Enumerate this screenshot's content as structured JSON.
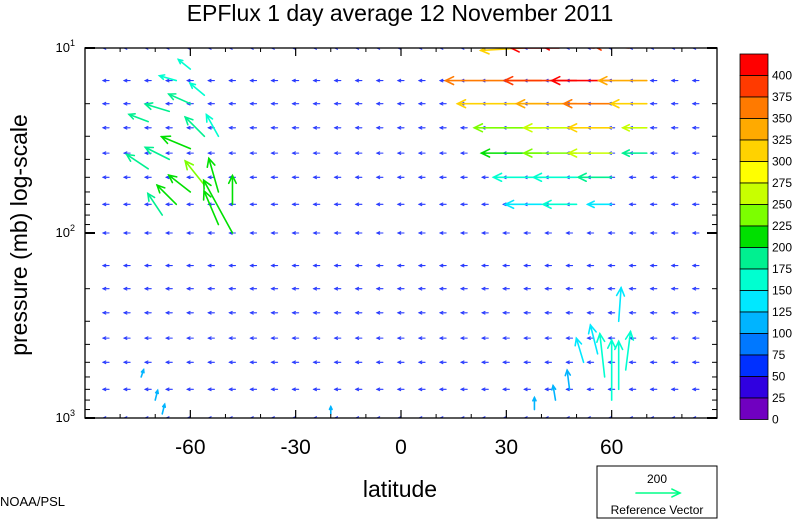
{
  "chart_data": {
    "type": "vector",
    "title": "EPFlux  1 day average  12 November  2011",
    "xlabel": "latitude",
    "ylabel": "pressure (mb)  log-scale",
    "x_ticks": [
      -60,
      -30,
      0,
      30,
      60
    ],
    "x_tick_labels": [
      "-60",
      "-30",
      "0",
      "30",
      "60"
    ],
    "xlim": [
      -90,
      90
    ],
    "y_scale": "log",
    "ylim": [
      1000,
      10
    ],
    "y_ticks": [
      {
        "value": 10,
        "base": "10",
        "exp": "1"
      },
      {
        "value": 100,
        "base": "10",
        "exp": "2"
      },
      {
        "value": 1000,
        "base": "10",
        "exp": "3"
      }
    ],
    "colorbar": {
      "labels": [
        "400",
        "375",
        "350",
        "325",
        "300",
        "275",
        "250",
        "225",
        "200",
        "175",
        "150",
        "125",
        "100",
        "75",
        "50",
        "25",
        "0"
      ],
      "colors": [
        "#ff0000",
        "#ff3a00",
        "#ff7a00",
        "#ffaa00",
        "#ffd200",
        "#ffff00",
        "#c8ff00",
        "#7cff00",
        "#00e000",
        "#00f090",
        "#00ffd0",
        "#00e8ff",
        "#00b4ff",
        "#0078ff",
        "#0030ff",
        "#3000e0",
        "#7000c0"
      ]
    },
    "reference_vector": {
      "value": "200",
      "label": "Reference Vector",
      "color": "#00ff88"
    },
    "source_label": "NOAA/PSL",
    "vectors": [
      {
        "lat": -68,
        "p": 80,
        "u": -6,
        "v": -9,
        "c": 180
      },
      {
        "lat": -64,
        "p": 70,
        "u": -8,
        "v": -8,
        "c": 200
      },
      {
        "lat": -60,
        "p": 60,
        "u": -9,
        "v": -7,
        "c": 210
      },
      {
        "lat": -56,
        "p": 55,
        "u": -8,
        "v": -10,
        "c": 215
      },
      {
        "lat": -52,
        "p": 60,
        "u": -4,
        "v": -14,
        "c": 205
      },
      {
        "lat": -48,
        "p": 70,
        "u": 0,
        "v": -12,
        "c": 195
      },
      {
        "lat": -72,
        "p": 45,
        "u": -9,
        "v": -6,
        "c": 170
      },
      {
        "lat": -66,
        "p": 40,
        "u": -10,
        "v": -5,
        "c": 185
      },
      {
        "lat": -60,
        "p": 35,
        "u": -12,
        "v": -5,
        "c": 195
      },
      {
        "lat": -56,
        "p": 30,
        "u": -8,
        "v": -8,
        "c": 175
      },
      {
        "lat": -52,
        "p": 30,
        "u": -5,
        "v": -9,
        "c": 160
      },
      {
        "lat": -72,
        "p": 25,
        "u": -8,
        "v": -3,
        "c": 165
      },
      {
        "lat": -66,
        "p": 22,
        "u": -10,
        "v": -3,
        "c": 175
      },
      {
        "lat": -60,
        "p": 20,
        "u": -9,
        "v": -4,
        "c": 170
      },
      {
        "lat": -56,
        "p": 18,
        "u": -6,
        "v": -5,
        "c": 150
      },
      {
        "lat": -64,
        "p": 15,
        "u": -7,
        "v": -2,
        "c": 150
      },
      {
        "lat": -60,
        "p": 13,
        "u": -5,
        "v": -4,
        "c": 140
      },
      {
        "lat": -48,
        "p": 100,
        "u": -12,
        "v": -22,
        "c": 200
      },
      {
        "lat": -52,
        "p": 90,
        "u": -6,
        "v": -14,
        "c": 190
      },
      {
        "lat": 40,
        "p": 15,
        "u": -40,
        "v": 0,
        "c": 340
      },
      {
        "lat": 50,
        "p": 15,
        "u": -30,
        "v": 0,
        "c": 380
      },
      {
        "lat": 60,
        "p": 15,
        "u": -25,
        "v": 0,
        "c": 400
      },
      {
        "lat": 70,
        "p": 15,
        "u": -20,
        "v": 0,
        "c": 330
      },
      {
        "lat": 40,
        "p": 20,
        "u": -35,
        "v": 0,
        "c": 290
      },
      {
        "lat": 50,
        "p": 20,
        "u": -25,
        "v": 0,
        "c": 330
      },
      {
        "lat": 60,
        "p": 20,
        "u": -20,
        "v": 0,
        "c": 360
      },
      {
        "lat": 70,
        "p": 20,
        "u": -15,
        "v": 0,
        "c": 300
      },
      {
        "lat": 40,
        "p": 27,
        "u": -28,
        "v": 0,
        "c": 230
      },
      {
        "lat": 50,
        "p": 27,
        "u": -22,
        "v": 0,
        "c": 260
      },
      {
        "lat": 60,
        "p": 27,
        "u": -18,
        "v": 0,
        "c": 290
      },
      {
        "lat": 70,
        "p": 27,
        "u": -10,
        "v": 0,
        "c": 240
      },
      {
        "lat": 40,
        "p": 37,
        "u": -25,
        "v": 0,
        "c": 200
      },
      {
        "lat": 50,
        "p": 37,
        "u": -22,
        "v": 0,
        "c": 230
      },
      {
        "lat": 60,
        "p": 37,
        "u": -18,
        "v": 0,
        "c": 250
      },
      {
        "lat": 70,
        "p": 37,
        "u": -10,
        "v": 0,
        "c": 180
      },
      {
        "lat": 40,
        "p": 50,
        "u": -20,
        "v": 0,
        "c": 150
      },
      {
        "lat": 50,
        "p": 50,
        "u": -18,
        "v": 0,
        "c": 160
      },
      {
        "lat": 60,
        "p": 50,
        "u": -14,
        "v": 0,
        "c": 170
      },
      {
        "lat": 40,
        "p": 70,
        "u": -15,
        "v": 0,
        "c": 130
      },
      {
        "lat": 50,
        "p": 70,
        "u": -14,
        "v": 0,
        "c": 140
      },
      {
        "lat": 60,
        "p": 70,
        "u": -10,
        "v": 0,
        "c": 120
      },
      {
        "lat": 35,
        "p": 10,
        "u": -18,
        "v": 1,
        "c": 300
      },
      {
        "lat": 45,
        "p": 10,
        "u": -20,
        "v": 0,
        "c": 390
      },
      {
        "lat": 55,
        "p": 10,
        "u": -22,
        "v": -1,
        "c": 400
      },
      {
        "lat": 65,
        "p": 10,
        "u": -15,
        "v": -1,
        "c": 380
      },
      {
        "lat": 60,
        "p": 800,
        "u": 0,
        "v": -25,
        "c": 150
      },
      {
        "lat": 62,
        "p": 700,
        "u": 0,
        "v": -20,
        "c": 150
      },
      {
        "lat": 58,
        "p": 600,
        "u": -2,
        "v": -18,
        "c": 140
      },
      {
        "lat": 64,
        "p": 550,
        "u": 2,
        "v": -16,
        "c": 140
      },
      {
        "lat": 56,
        "p": 450,
        "u": -3,
        "v": -12,
        "c": 130
      },
      {
        "lat": 62,
        "p": 300,
        "u": 1,
        "v": -14,
        "c": 120
      },
      {
        "lat": 52,
        "p": 500,
        "u": -3,
        "v": -10,
        "c": 120
      },
      {
        "lat": 48,
        "p": 700,
        "u": -1,
        "v": -8,
        "c": 110
      },
      {
        "lat": 44,
        "p": 800,
        "u": -1,
        "v": -6,
        "c": 100
      },
      {
        "lat": 38,
        "p": 900,
        "u": 0,
        "v": -5,
        "c": 100
      },
      {
        "lat": -74,
        "p": 600,
        "u": 1,
        "v": -3,
        "c": 90
      },
      {
        "lat": -70,
        "p": 800,
        "u": 1,
        "v": -4,
        "c": 90
      },
      {
        "lat": -68,
        "p": 950,
        "u": 1,
        "v": -4,
        "c": 100
      },
      {
        "lat": -20,
        "p": 950,
        "u": 0,
        "v": -3,
        "c": 90
      }
    ]
  }
}
